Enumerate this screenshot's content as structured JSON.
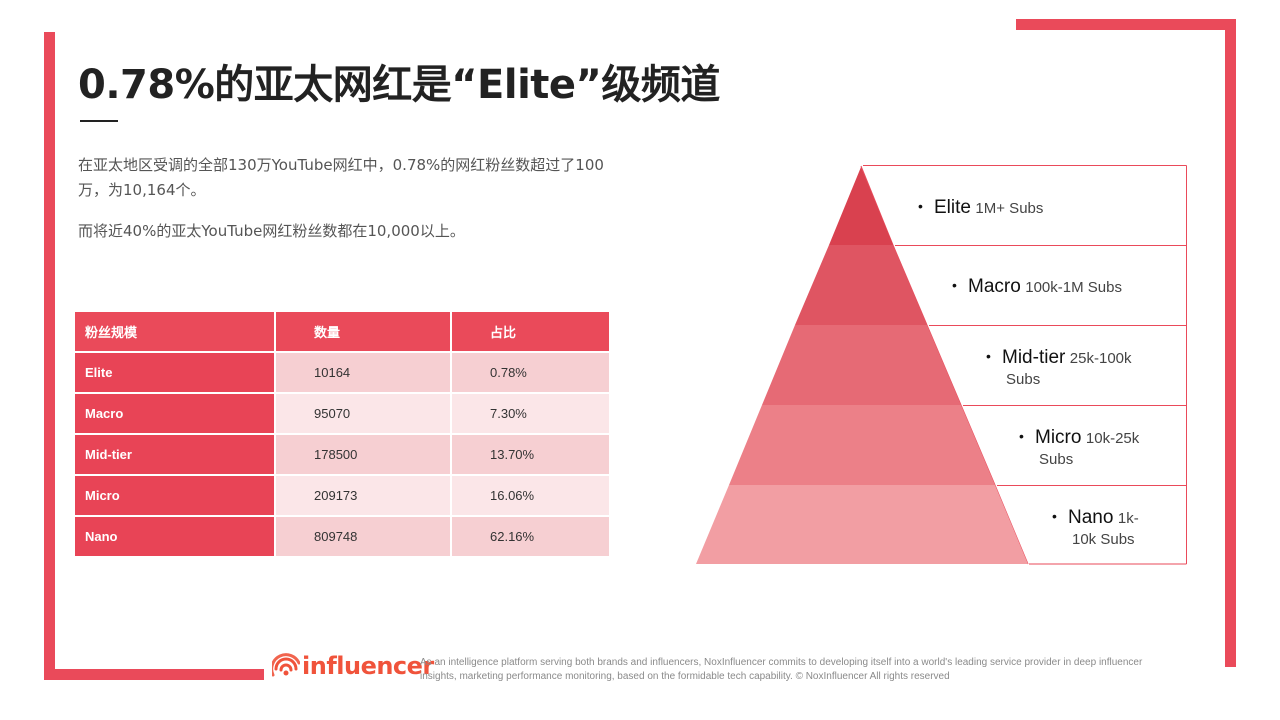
{
  "title": "0.78%的亚太网红是“Elite”级频道",
  "paragraphs": [
    "在亚太地区受调的全部130万YouTube网红中，0.78%的网红粉丝数超过了100万，为10,164个。",
    "而将近40%的亚太YouTube网红粉丝数都在10,000以上。"
  ],
  "table": {
    "headers": [
      "粉丝规模",
      "数量",
      "占比"
    ],
    "rows": [
      [
        "Elite",
        "10164",
        "0.78%"
      ],
      [
        "Macro",
        "95070",
        "7.30%"
      ],
      [
        "Mid-tier",
        "178500",
        "13.70%"
      ],
      [
        "Micro",
        "209173",
        "16.06%"
      ],
      [
        "Nano",
        "809748",
        "62.16%"
      ]
    ]
  },
  "pyramid": {
    "tiers": [
      {
        "name": "Elite",
        "desc": "1M+ Subs",
        "color": "#d9414f"
      },
      {
        "name": "Macro",
        "desc": "100k-1M Subs",
        "color": "#df5562"
      },
      {
        "name": "Mid-tier",
        "desc": "25k-100k Subs",
        "color": "#e66a75"
      },
      {
        "name": "Micro",
        "desc": "10k-25k Subs",
        "color": "#ec8088"
      },
      {
        "name": "Nano",
        "desc": "1k-10k Subs",
        "color": "#f29ea3"
      }
    ]
  },
  "footer": {
    "brand": "influencer",
    "text": "As an intelligence platform serving both brands and influencers, NoxInfluencer commits to developing itself into a world's leading service provider in deep influencer insights, marketing performance monitoring, based on the formidable tech capability. © NoxInfluencer All rights reserved"
  },
  "colors": {
    "accent": "#ea4a5a",
    "brand": "#f0533b"
  }
}
